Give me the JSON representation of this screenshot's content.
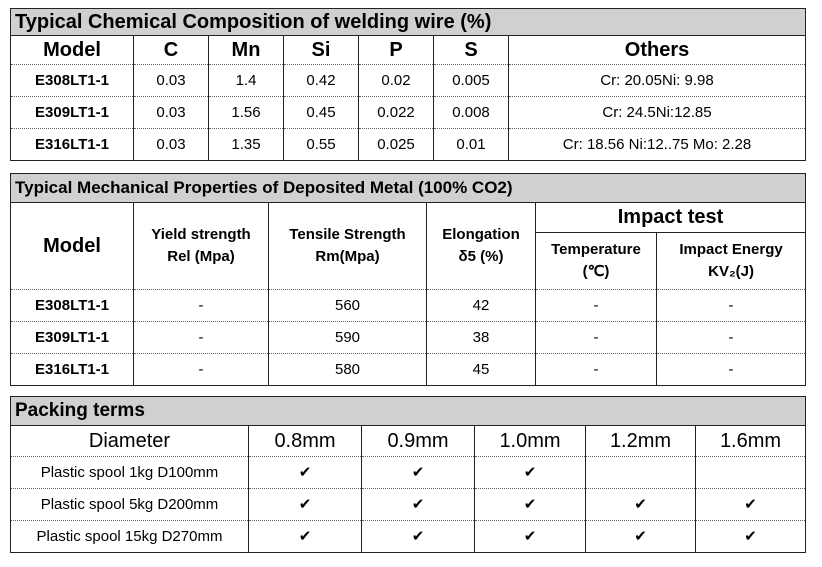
{
  "chem": {
    "title": "Typical Chemical Composition of welding wire (%)",
    "headers": [
      "Model",
      "C",
      "Mn",
      "Si",
      "P",
      "S",
      "Others"
    ],
    "rows": [
      [
        "E308LT1-1",
        "0.03",
        "1.4",
        "0.42",
        "0.02",
        "0.005",
        "Cr: 20.05Ni: 9.98"
      ],
      [
        "E309LT1-1",
        "0.03",
        "1.56",
        "0.45",
        "0.022",
        "0.008",
        "Cr: 24.5Ni:12.85"
      ],
      [
        "E316LT1-1",
        "0.03",
        "1.35",
        "0.55",
        "0.025",
        "0.01",
        "Cr: 18.56  Ni:12..75  Mo: 2.28"
      ]
    ]
  },
  "mech": {
    "title": "Typical Mechanical Properties of Deposited Metal (100% CO2)",
    "model_header": "Model",
    "yield_line1": "Yield strength",
    "yield_line2": "Rel (Mpa)",
    "tensile_line1": "Tensile Strength",
    "tensile_line2": "Rm(Mpa)",
    "elong_line1": "Elongation",
    "elong_line2": "δ5 (%)",
    "impact_header": "Impact test",
    "temp_line1": "Temperature",
    "temp_line2": "(℃)",
    "energy_line1": "Impact Energy",
    "energy_line2": "KV₂(J)",
    "rows": [
      [
        "E308LT1-1",
        "-",
        "560",
        "42",
        "-",
        "-"
      ],
      [
        "E309LT1-1",
        "-",
        "590",
        "38",
        "-",
        "-"
      ],
      [
        "E316LT1-1",
        "-",
        "580",
        "45",
        "-",
        "-"
      ]
    ]
  },
  "packing": {
    "title": "Packing terms",
    "headers": [
      "Diameter",
      "0.8mm",
      "0.9mm",
      "1.0mm",
      "1.2mm",
      "1.6mm"
    ],
    "check_glyph": "✔",
    "rows": [
      {
        "label": "Plastic spool 1kg D100mm",
        "checks": [
          true,
          true,
          true,
          false,
          false
        ]
      },
      {
        "label": "Plastic spool 5kg D200mm",
        "checks": [
          true,
          true,
          true,
          true,
          true
        ]
      },
      {
        "label": "Plastic spool 15kg D270mm",
        "checks": [
          true,
          true,
          true,
          true,
          true
        ]
      }
    ]
  }
}
